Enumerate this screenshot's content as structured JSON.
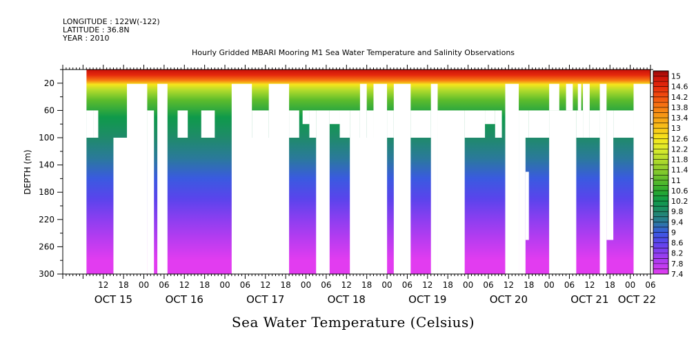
{
  "header": {
    "longitude": "LONGITUDE : 122W(-122)",
    "latitude": "LATITUDE : 36.8N",
    "year": "YEAR : 2010"
  },
  "chart_data": {
    "type": "heatmap",
    "title": "Hourly Gridded MBARI Mooring M1 Sea Water Temperature and Salinity Observations",
    "bottom_title": "Sea Water Temperature (Celsius)",
    "ylabel": "DEPTH (m)",
    "xlabel": "",
    "y_reversed": true,
    "ylim": [
      300,
      0
    ],
    "xlim_hours": [
      -24,
      150
    ],
    "y_ticks": [
      20,
      60,
      100,
      140,
      180,
      220,
      260,
      300
    ],
    "x_hour_tick_labels": [
      {
        "h": -12,
        "label": "12"
      },
      {
        "h": -6,
        "label": "18"
      },
      {
        "h": 0,
        "label": "00"
      },
      {
        "h": 6,
        "label": "06"
      },
      {
        "h": 12,
        "label": "12"
      },
      {
        "h": 18,
        "label": "18"
      },
      {
        "h": 24,
        "label": "00"
      },
      {
        "h": 30,
        "label": "06"
      },
      {
        "h": 36,
        "label": "12"
      },
      {
        "h": 42,
        "label": "18"
      },
      {
        "h": 48,
        "label": "00"
      },
      {
        "h": 54,
        "label": "06"
      },
      {
        "h": 60,
        "label": "12"
      },
      {
        "h": 66,
        "label": "18"
      },
      {
        "h": 72,
        "label": "00"
      },
      {
        "h": 78,
        "label": "06"
      },
      {
        "h": 84,
        "label": "12"
      },
      {
        "h": 90,
        "label": "18"
      },
      {
        "h": 96,
        "label": "00"
      },
      {
        "h": 102,
        "label": "06"
      },
      {
        "h": 108,
        "label": "12"
      },
      {
        "h": 114,
        "label": "18"
      },
      {
        "h": 120,
        "label": "00"
      },
      {
        "h": 126,
        "label": "06"
      },
      {
        "h": 132,
        "label": "12"
      },
      {
        "h": 138,
        "label": "18"
      },
      {
        "h": 144,
        "label": "00"
      },
      {
        "h": 150,
        "label": "06"
      }
    ],
    "day_labels": [
      {
        "h": -9,
        "label": "OCT 15"
      },
      {
        "h": 12,
        "label": "OCT 16"
      },
      {
        "h": 36,
        "label": "OCT 17"
      },
      {
        "h": 60,
        "label": "OCT 18"
      },
      {
        "h": 84,
        "label": "OCT 19"
      },
      {
        "h": 108,
        "label": "OCT 20"
      },
      {
        "h": 132,
        "label": "OCT 21"
      },
      {
        "h": 146,
        "label": "OCT 22"
      }
    ],
    "data_start_hour": -17,
    "missing_blocks": [
      {
        "h0": -24,
        "h1": -17,
        "d0": 0,
        "d1": 300
      },
      {
        "h0": -17,
        "h1": -15,
        "d0": 60,
        "d1": 100
      },
      {
        "h0": -15,
        "h1": -13.5,
        "d0": 60,
        "d1": 100
      },
      {
        "h0": -9,
        "h1": 1,
        "d0": 100,
        "d1": 300
      },
      {
        "h0": -5,
        "h1": 1,
        "d0": 21,
        "d1": 100
      },
      {
        "h0": 1,
        "h1": 3,
        "d0": 60,
        "d1": 300
      },
      {
        "h0": 4,
        "h1": 7,
        "d0": 21,
        "d1": 300
      },
      {
        "h0": 10,
        "h1": 13,
        "d0": 60,
        "d1": 100
      },
      {
        "h0": 17,
        "h1": 21,
        "d0": 60,
        "d1": 100
      },
      {
        "h0": 26,
        "h1": 43,
        "d0": 100,
        "d1": 300
      },
      {
        "h0": 26,
        "h1": 32,
        "d0": 21,
        "d1": 100
      },
      {
        "h0": 32,
        "h1": 37,
        "d0": 60,
        "d1": 100
      },
      {
        "h0": 37,
        "h1": 43,
        "d0": 21,
        "d1": 100
      },
      {
        "h0": 43,
        "h1": 46,
        "d0": 60,
        "d1": 100
      },
      {
        "h0": 47,
        "h1": 49,
        "d0": 60,
        "d1": 80
      },
      {
        "h0": 49,
        "h1": 51,
        "d0": 60,
        "d1": 100
      },
      {
        "h0": 51,
        "h1": 55,
        "d0": 60,
        "d1": 300
      },
      {
        "h0": 55,
        "h1": 58,
        "d0": 60,
        "d1": 80
      },
      {
        "h0": 58,
        "h1": 61,
        "d0": 60,
        "d1": 100
      },
      {
        "h0": 61,
        "h1": 72,
        "d0": 100,
        "d1": 300
      },
      {
        "h0": 61,
        "h1": 64,
        "d0": 60,
        "d1": 100
      },
      {
        "h0": 64,
        "h1": 66,
        "d0": 21,
        "d1": 300
      },
      {
        "h0": 66,
        "h1": 68,
        "d0": 60,
        "d1": 100
      },
      {
        "h0": 68,
        "h1": 72,
        "d0": 21,
        "d1": 300
      },
      {
        "h0": 72,
        "h1": 74,
        "d0": 60,
        "d1": 100
      },
      {
        "h0": 74,
        "h1": 79,
        "d0": 21,
        "d1": 300
      },
      {
        "h0": 79,
        "h1": 85,
        "d0": 60,
        "d1": 100
      },
      {
        "h0": 85,
        "h1": 87,
        "d0": 21,
        "d1": 300
      },
      {
        "h0": 87,
        "h1": 95,
        "d0": 60,
        "d1": 300
      },
      {
        "h0": 95,
        "h1": 101,
        "d0": 60,
        "d1": 100
      },
      {
        "h0": 101,
        "h1": 104,
        "d0": 60,
        "d1": 80
      },
      {
        "h0": 104,
        "h1": 106,
        "d0": 60,
        "d1": 100
      },
      {
        "h0": 107,
        "h1": 111,
        "d0": 21,
        "d1": 300
      },
      {
        "h0": 111,
        "h1": 114,
        "d0": 60,
        "d1": 100
      },
      {
        "h0": 111,
        "h1": 113,
        "d0": 100,
        "d1": 300
      },
      {
        "h0": 113,
        "h1": 114,
        "d0": 150,
        "d1": 250
      },
      {
        "h0": 114,
        "h1": 120,
        "d0": 60,
        "d1": 100
      },
      {
        "h0": 120,
        "h1": 128,
        "d0": 60,
        "d1": 300
      },
      {
        "h0": 120,
        "h1": 123,
        "d0": 21,
        "d1": 60
      },
      {
        "h0": 125,
        "h1": 127,
        "d0": 21,
        "d1": 60
      },
      {
        "h0": 127,
        "h1": 128,
        "d0": 100,
        "d1": 300
      },
      {
        "h0": 128,
        "h1": 130,
        "d0": 60,
        "d1": 100
      },
      {
        "h0": 128.5,
        "h1": 129.5,
        "d0": 21,
        "d1": 60
      },
      {
        "h0": 130,
        "h1": 132,
        "d0": 21,
        "d1": 100
      },
      {
        "h0": 132,
        "h1": 135,
        "d0": 60,
        "d1": 100
      },
      {
        "h0": 135,
        "h1": 137,
        "d0": 21,
        "d1": 300
      },
      {
        "h0": 137,
        "h1": 139,
        "d0": 60,
        "d1": 250
      },
      {
        "h0": 139,
        "h1": 145,
        "d0": 60,
        "d1": 100
      },
      {
        "h0": 145,
        "h1": 151,
        "d0": 21,
        "d1": 300
      },
      {
        "h0": 151,
        "h1": 152,
        "d0": 60,
        "d1": 100
      }
    ],
    "colorbar": {
      "min": 7.4,
      "max": 15.2,
      "step": 0.2,
      "labels": [
        "15",
        "14.6",
        "14.2",
        "13.8",
        "13.4",
        "13",
        "12.6",
        "12.2",
        "11.8",
        "11.4",
        "11",
        "10.6",
        "10.2",
        "9.8",
        "9.4",
        "9",
        "8.6",
        "8.2",
        "7.8",
        "7.4"
      ],
      "stops": [
        [
          7.4,
          "#e23cf0"
        ],
        [
          7.8,
          "#b93cf0"
        ],
        [
          8.2,
          "#8c3ef0"
        ],
        [
          8.6,
          "#5a44ec"
        ],
        [
          9.0,
          "#3a5ae0"
        ],
        [
          9.4,
          "#2a7a9a"
        ],
        [
          9.8,
          "#1f8a6a"
        ],
        [
          10.2,
          "#0f9a4a"
        ],
        [
          10.6,
          "#2aaa2e"
        ],
        [
          11.0,
          "#5cbc2c"
        ],
        [
          11.4,
          "#8ccc2c"
        ],
        [
          11.8,
          "#b4dc2c"
        ],
        [
          12.2,
          "#dcec2c"
        ],
        [
          12.6,
          "#f6e61c"
        ],
        [
          13.0,
          "#f8c418"
        ],
        [
          13.4,
          "#f7a015"
        ],
        [
          13.8,
          "#f77a12"
        ],
        [
          14.2,
          "#f25010"
        ],
        [
          14.6,
          "#e62a0c"
        ],
        [
          15.0,
          "#c8120a"
        ],
        [
          15.2,
          "#900808"
        ]
      ]
    }
  }
}
